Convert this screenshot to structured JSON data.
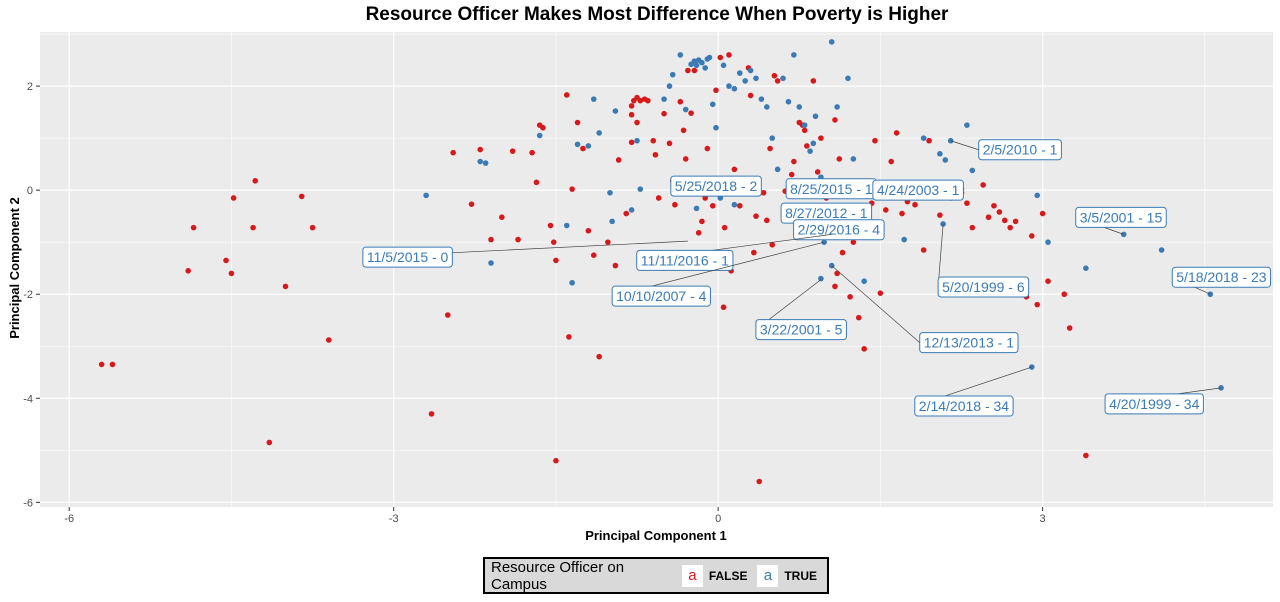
{
  "chart_data": {
    "type": "scatter",
    "title": "Resource Officer Makes Most Difference When Poverty is Higher",
    "xlabel": "Principal Component 1",
    "ylabel": "Principal Component 2",
    "xlim": [
      -6.27,
      5.13
    ],
    "ylim": [
      -6.09,
      3.04
    ],
    "x_ticks": [
      -6,
      -3,
      0,
      3
    ],
    "y_ticks": [
      -6,
      -4,
      -2,
      0,
      2
    ],
    "grid": true,
    "legend": {
      "title": "Resource Officer on Campus",
      "placement": "bottom",
      "key_glyph": "a",
      "entries": [
        {
          "label": "FALSE",
          "color": "#d7191c"
        },
        {
          "label": "TRUE",
          "color": "#3b7bb5"
        }
      ]
    },
    "series": [
      {
        "name": "FALSE",
        "color": "#d7191c",
        "points": [
          [
            -5.7,
            -3.35
          ],
          [
            -5.6,
            -3.35
          ],
          [
            -4.9,
            -1.55
          ],
          [
            -4.85,
            -0.72
          ],
          [
            -4.55,
            -1.35
          ],
          [
            -4.5,
            -1.6
          ],
          [
            -4.48,
            -0.15
          ],
          [
            -4.3,
            -0.72
          ],
          [
            -4.28,
            0.18
          ],
          [
            -4.15,
            -4.85
          ],
          [
            -4.0,
            -1.85
          ],
          [
            -3.85,
            -0.12
          ],
          [
            -3.75,
            -0.72
          ],
          [
            -3.6,
            -2.88
          ],
          [
            -2.65,
            -4.3
          ],
          [
            -2.5,
            -2.4
          ],
          [
            -2.45,
            0.72
          ],
          [
            -2.28,
            -0.27
          ],
          [
            -2.2,
            0.78
          ],
          [
            -2.1,
            -0.95
          ],
          [
            -2.0,
            -0.52
          ],
          [
            -1.9,
            0.75
          ],
          [
            -1.85,
            -0.95
          ],
          [
            -1.72,
            0.72
          ],
          [
            -1.68,
            0.15
          ],
          [
            -1.65,
            1.25
          ],
          [
            -1.62,
            1.2
          ],
          [
            -1.55,
            -0.68
          ],
          [
            -1.52,
            -1.0
          ],
          [
            -1.5,
            -1.35
          ],
          [
            -1.5,
            -5.2
          ],
          [
            -1.4,
            1.83
          ],
          [
            -1.38,
            -2.82
          ],
          [
            -1.35,
            0.02
          ],
          [
            -1.3,
            1.3
          ],
          [
            -1.25,
            0.8
          ],
          [
            -1.2,
            -0.78
          ],
          [
            -1.15,
            -1.25
          ],
          [
            -1.1,
            -3.2
          ],
          [
            -1.02,
            -1.0
          ],
          [
            -0.95,
            -1.45
          ],
          [
            -0.85,
            -0.45
          ],
          [
            -0.8,
            1.62
          ],
          [
            -0.78,
            1.72
          ],
          [
            -0.75,
            1.78
          ],
          [
            -0.72,
            1.72
          ],
          [
            -0.68,
            1.75
          ],
          [
            -0.65,
            1.72
          ],
          [
            -0.8,
            1.45
          ],
          [
            -0.75,
            1.3
          ],
          [
            -0.8,
            0.92
          ],
          [
            -0.6,
            0.95
          ],
          [
            -0.58,
            0.68
          ],
          [
            -0.55,
            -0.15
          ],
          [
            -0.5,
            1.47
          ],
          [
            -0.45,
            0.9
          ],
          [
            -0.42,
            0.18
          ],
          [
            -0.4,
            -0.28
          ],
          [
            -0.35,
            1.7
          ],
          [
            -0.32,
            1.15
          ],
          [
            -0.3,
            0.6
          ],
          [
            -0.28,
            2.3
          ],
          [
            -0.25,
            1.48
          ],
          [
            -0.22,
            2.3
          ],
          [
            -0.2,
            0.22
          ],
          [
            -0.18,
            -0.82
          ],
          [
            -0.15,
            -0.6
          ],
          [
            -0.12,
            -0.15
          ],
          [
            -0.1,
            0.8
          ],
          [
            -0.08,
            0.05
          ],
          [
            -0.05,
            -0.3
          ],
          [
            -0.02,
            1.92
          ],
          [
            0.02,
            2.55
          ],
          [
            0.05,
            -2.25
          ],
          [
            0.06,
            -0.72
          ],
          [
            0.1,
            2.6
          ],
          [
            0.12,
            -1.55
          ],
          [
            0.15,
            0.4
          ],
          [
            0.2,
            -0.3
          ],
          [
            0.25,
            0.1
          ],
          [
            0.28,
            2.35
          ],
          [
            0.3,
            1.82
          ],
          [
            0.33,
            -1.2
          ],
          [
            0.35,
            -0.5
          ],
          [
            0.38,
            -5.6
          ],
          [
            0.42,
            -0.05
          ],
          [
            0.45,
            -0.58
          ],
          [
            0.48,
            0.8
          ],
          [
            0.5,
            -1.05
          ],
          [
            0.52,
            2.2
          ],
          [
            0.55,
            2.1
          ],
          [
            0.6,
            -2.65
          ],
          [
            0.62,
            -0.02
          ],
          [
            0.65,
            -0.45
          ],
          [
            0.68,
            0.3
          ],
          [
            0.7,
            0.55
          ],
          [
            0.75,
            1.3
          ],
          [
            0.78,
            1.25
          ],
          [
            0.8,
            1.15
          ],
          [
            0.82,
            0.85
          ],
          [
            0.85,
            -0.7
          ],
          [
            0.88,
            2.1
          ],
          [
            0.92,
            0.35
          ],
          [
            0.95,
            1.0
          ],
          [
            1.0,
            -0.15
          ],
          [
            1.05,
            -2.65
          ],
          [
            1.08,
            1.35
          ],
          [
            1.1,
            -1.6
          ],
          [
            1.12,
            0.6
          ],
          [
            1.15,
            -1.2
          ],
          [
            1.18,
            -0.42
          ],
          [
            1.2,
            0.15
          ],
          [
            1.22,
            -2.05
          ],
          [
            1.25,
            -1.0
          ],
          [
            1.28,
            -0.78
          ],
          [
            1.3,
            -2.45
          ],
          [
            1.35,
            -3.05
          ],
          [
            1.4,
            -0.6
          ],
          [
            1.42,
            -0.25
          ],
          [
            1.45,
            0.95
          ],
          [
            1.5,
            -1.98
          ],
          [
            1.52,
            0.02
          ],
          [
            1.55,
            -0.38
          ],
          [
            1.65,
            1.1
          ],
          [
            1.7,
            -0.45
          ],
          [
            1.75,
            -0.22
          ],
          [
            1.82,
            -0.28
          ],
          [
            1.9,
            -1.15
          ],
          [
            1.95,
            0.95
          ],
          [
            2.05,
            -0.48
          ],
          [
            2.1,
            0.02
          ],
          [
            2.15,
            -0.15
          ],
          [
            2.25,
            -0.05
          ],
          [
            2.3,
            -0.25
          ],
          [
            2.35,
            -0.72
          ],
          [
            2.45,
            0.1
          ],
          [
            2.5,
            -0.52
          ],
          [
            2.55,
            -0.3
          ],
          [
            2.6,
            -0.42
          ],
          [
            2.65,
            -0.58
          ],
          [
            2.7,
            -0.72
          ],
          [
            2.75,
            -0.6
          ],
          [
            2.8,
            -1.95
          ],
          [
            2.85,
            -2.05
          ],
          [
            2.9,
            -0.88
          ],
          [
            2.95,
            -2.2
          ],
          [
            3.0,
            -0.45
          ],
          [
            3.05,
            -1.75
          ],
          [
            3.2,
            -2.0
          ],
          [
            3.25,
            -2.65
          ],
          [
            3.4,
            -5.1
          ],
          [
            1.08,
            -1.85
          ],
          [
            0.95,
            -0.48
          ],
          [
            -0.92,
            0.58
          ],
          [
            1.6,
            0.55
          ]
        ]
      },
      {
        "name": "TRUE",
        "color": "#3b7bb5",
        "points": [
          [
            -2.7,
            -0.1
          ],
          [
            -2.2,
            0.55
          ],
          [
            -2.15,
            0.52
          ],
          [
            -2.1,
            -1.4
          ],
          [
            -1.65,
            1.05
          ],
          [
            -1.4,
            -0.68
          ],
          [
            -1.35,
            -1.78
          ],
          [
            -1.3,
            0.88
          ],
          [
            -1.2,
            0.85
          ],
          [
            -1.15,
            1.75
          ],
          [
            -1.1,
            1.1
          ],
          [
            -1.0,
            -0.05
          ],
          [
            -0.98,
            -0.6
          ],
          [
            -0.95,
            1.52
          ],
          [
            -0.8,
            -0.38
          ],
          [
            -0.75,
            0.95
          ],
          [
            -0.5,
            1.75
          ],
          [
            -0.45,
            2.0
          ],
          [
            -0.42,
            2.22
          ],
          [
            -0.35,
            2.6
          ],
          [
            -0.3,
            1.55
          ],
          [
            -0.25,
            2.42
          ],
          [
            -0.22,
            2.48
          ],
          [
            -0.2,
            2.4
          ],
          [
            -0.18,
            2.5
          ],
          [
            -0.15,
            2.45
          ],
          [
            -0.12,
            2.35
          ],
          [
            -0.1,
            2.52
          ],
          [
            -0.08,
            2.55
          ],
          [
            -0.05,
            1.65
          ],
          [
            -0.02,
            1.2
          ],
          [
            0.05,
            2.4
          ],
          [
            0.1,
            2.0
          ],
          [
            0.15,
            1.95
          ],
          [
            0.2,
            2.25
          ],
          [
            0.25,
            2.1
          ],
          [
            0.3,
            2.3
          ],
          [
            0.35,
            2.15
          ],
          [
            0.4,
            1.75
          ],
          [
            0.45,
            1.6
          ],
          [
            0.5,
            1.0
          ],
          [
            0.55,
            0.4
          ],
          [
            0.6,
            2.15
          ],
          [
            0.65,
            1.7
          ],
          [
            0.7,
            2.6
          ],
          [
            0.75,
            1.6
          ],
          [
            0.8,
            1.25
          ],
          [
            0.85,
            0.75
          ],
          [
            0.9,
            1.42
          ],
          [
            0.95,
            0.25
          ],
          [
            1.05,
            2.85
          ],
          [
            1.1,
            1.6
          ],
          [
            1.2,
            2.15
          ],
          [
            1.25,
            0.6
          ],
          [
            1.3,
            -0.1
          ],
          [
            1.35,
            -1.75
          ],
          [
            1.9,
            1.0
          ],
          [
            2.05,
            0.7
          ],
          [
            2.1,
            0.58
          ],
          [
            2.15,
            0.95
          ],
          [
            2.25,
            0.02
          ],
          [
            2.3,
            1.25
          ],
          [
            2.35,
            0.38
          ],
          [
            2.95,
            -0.1
          ],
          [
            3.05,
            -1.0
          ],
          [
            3.4,
            -1.5
          ],
          [
            3.75,
            -0.85
          ],
          [
            4.1,
            -1.15
          ],
          [
            4.55,
            -2.0
          ],
          [
            4.65,
            -3.8
          ],
          [
            2.9,
            -3.4
          ],
          [
            1.05,
            -1.45
          ],
          [
            0.95,
            -1.7
          ],
          [
            0.98,
            -1.0
          ],
          [
            0.15,
            -0.28
          ],
          [
            -0.2,
            -0.35
          ],
          [
            0.02,
            -0.15
          ],
          [
            -0.72,
            0.02
          ],
          [
            0.88,
            0.9
          ],
          [
            2.08,
            -0.65
          ],
          [
            1.72,
            -0.95
          ]
        ]
      }
    ],
    "annotations": [
      {
        "text": "2/5/2010 - 1",
        "x": 2.15,
        "y": 0.95
      },
      {
        "text": "5/25/2018 - 2",
        "x": 0.08,
        "y": 0.02
      },
      {
        "text": "8/25/2015 - 1",
        "x": 0.98,
        "y": 0.18
      },
      {
        "text": "4/24/2003 - 1",
        "x": 2.05,
        "y": 0.02
      },
      {
        "text": "3/5/2001 - 15",
        "x": 3.75,
        "y": -0.85
      },
      {
        "text": "8/27/2012 - 1",
        "x": 0.85,
        "y": -0.5
      },
      {
        "text": "2/29/2016 - 4",
        "x": 1.28,
        "y": -0.78
      },
      {
        "text": "11/11/2016 - 1",
        "x": 1.05,
        "y": -0.85
      },
      {
        "text": "11/5/2015 - 0",
        "x": -0.28,
        "y": -0.98
      },
      {
        "text": "5/20/1999 - 6",
        "x": 2.08,
        "y": -0.65
      },
      {
        "text": "5/18/2018 - 23",
        "x": 4.55,
        "y": -2.0
      },
      {
        "text": "10/10/2007 - 4",
        "x": 0.98,
        "y": -1.0
      },
      {
        "text": "3/22/2001 - 5",
        "x": 0.95,
        "y": -1.72
      },
      {
        "text": "12/13/2013 - 1",
        "x": 1.05,
        "y": -1.45
      },
      {
        "text": "2/14/2018 - 34",
        "x": 2.9,
        "y": -3.4
      },
      {
        "text": "4/20/1999 - 34",
        "x": 4.65,
        "y": -3.8
      }
    ]
  }
}
